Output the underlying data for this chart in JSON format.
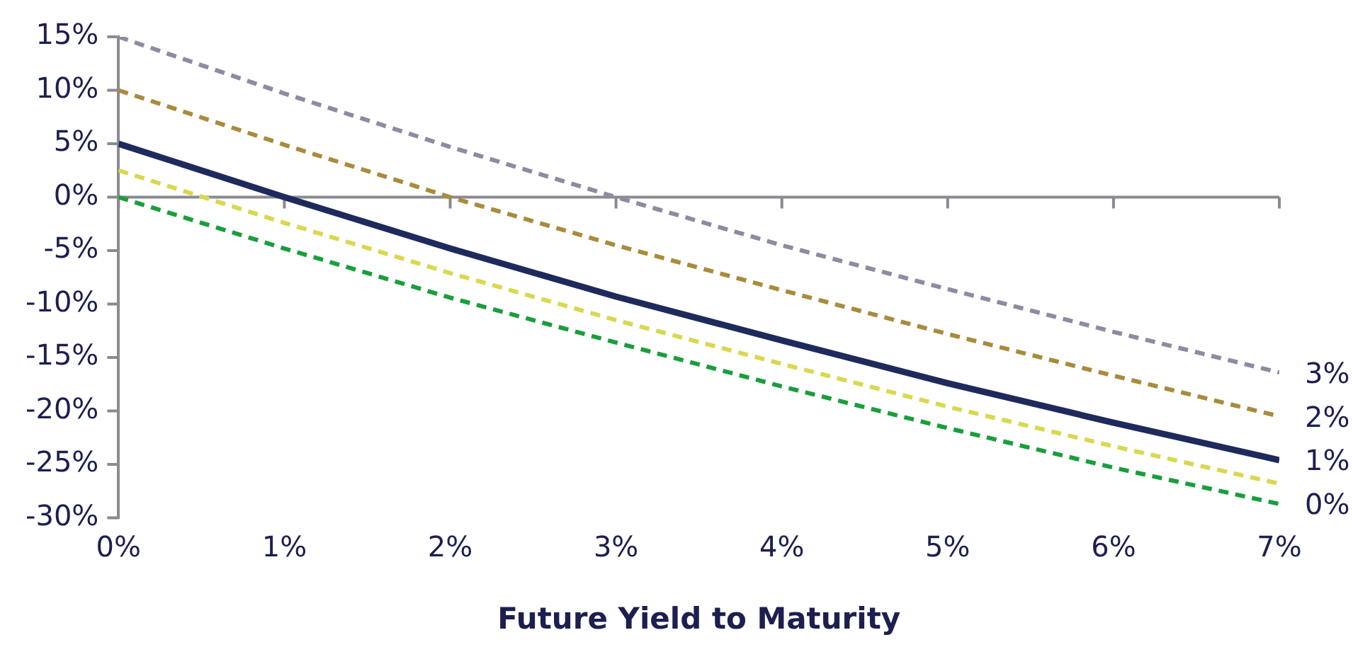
{
  "chart_data": {
    "type": "line",
    "xlabel": "Future Yield to Maturity",
    "x": [
      0,
      1,
      2,
      3,
      4,
      5,
      6,
      7
    ],
    "series": [
      {
        "name": "3%",
        "color": "#8c8ca0",
        "line_style": "dashed",
        "values": [
          15,
          9.7,
          4.7,
          0,
          -4.5,
          -8.6,
          -12.6,
          -16.4
        ]
      },
      {
        "name": "2%",
        "color": "#a88c3c",
        "line_style": "dashed",
        "values": [
          10,
          4.9,
          0,
          -4.5,
          -8.7,
          -12.8,
          -16.7,
          -20.5
        ]
      },
      {
        "name": "1%",
        "color": "#1f2a5c",
        "line_style": "solid",
        "values": [
          5,
          0,
          -4.8,
          -9.3,
          -13.4,
          -17.4,
          -21.1,
          -24.6
        ]
      },
      {
        "color": "#d9d84f",
        "line_style": "dashed",
        "values": [
          2.5,
          -2.4,
          -7.1,
          -11.5,
          -15.6,
          -19.6,
          -23.3,
          -26.8
        ]
      },
      {
        "name": "0%",
        "color": "#1a9e3c",
        "line_style": "dashed",
        "values": [
          0,
          -4.8,
          -9.4,
          -13.6,
          -17.7,
          -21.6,
          -25.3,
          -28.7
        ]
      }
    ],
    "xlim": [
      0,
      7
    ],
    "xticks": [
      {
        "value": 0,
        "label": "0%"
      },
      {
        "value": 1,
        "label": "1%"
      },
      {
        "value": 2,
        "label": "2%"
      },
      {
        "value": 3,
        "label": "3%"
      },
      {
        "value": 4,
        "label": "4%"
      },
      {
        "value": 5,
        "label": "5%"
      },
      {
        "value": 6,
        "label": "6%"
      },
      {
        "value": 7,
        "label": "7%"
      }
    ],
    "ylim": [
      -30,
      15
    ],
    "yticks": [
      {
        "value": 15,
        "label": "15%"
      },
      {
        "value": 10,
        "label": "10%"
      },
      {
        "value": 5,
        "label": "5%"
      },
      {
        "value": 0,
        "label": "0%"
      },
      {
        "value": -5,
        "label": "-5%"
      },
      {
        "value": -10,
        "label": "-10%"
      },
      {
        "value": -15,
        "label": "-15%"
      },
      {
        "value": -20,
        "label": "-20%"
      },
      {
        "value": -25,
        "label": "-25%"
      },
      {
        "value": -30,
        "label": "-30%"
      }
    ],
    "ref_lines": [
      {
        "axis": "y",
        "value": 0,
        "color": "#8a8a92",
        "line_style": "solid"
      }
    ],
    "grid": false,
    "legend": false,
    "marker": "none"
  }
}
